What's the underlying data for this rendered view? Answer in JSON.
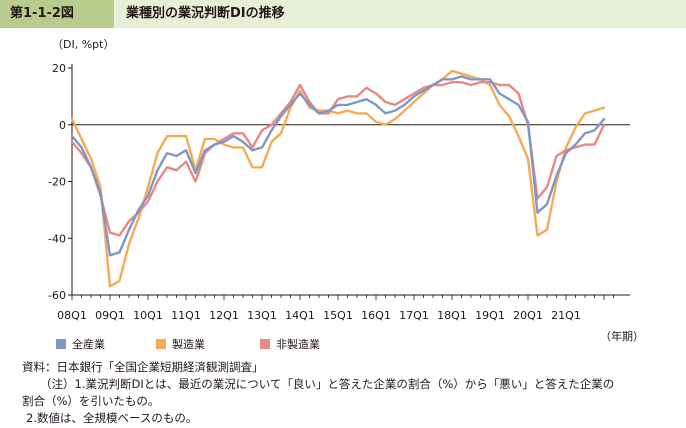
{
  "figure": {
    "number": "第1-1-2図",
    "title": "業種別の業況判断DIの推移"
  },
  "chart_data": {
    "type": "line",
    "unit_label": "（DI, %pt）",
    "x_unit_label": "（年期）",
    "ylim": [
      -60,
      20
    ],
    "yticks": [
      20,
      0,
      -20,
      -40,
      -60
    ],
    "zero_line": true,
    "grid": false,
    "legend_position": "bottom-left",
    "x_tick_labels": [
      "08Q1",
      "09Q1",
      "10Q1",
      "11Q1",
      "12Q1",
      "13Q1",
      "14Q1",
      "15Q1",
      "16Q1",
      "17Q1",
      "18Q1",
      "19Q1",
      "20Q1",
      "21Q1"
    ],
    "x_start": "2008Q1",
    "series": [
      {
        "name": "全産業",
        "color": "#7f97c4",
        "values": [
          -4,
          -8,
          -15,
          -24,
          -46,
          -45,
          -37,
          -30,
          -25,
          -16,
          -10,
          -11,
          -9,
          -17,
          -9,
          -7,
          -6,
          -4,
          -6,
          -9,
          -8,
          -2,
          3,
          7,
          11,
          7,
          4,
          5,
          7,
          7,
          8,
          9,
          7,
          4,
          5,
          7,
          10,
          12,
          14,
          16,
          16,
          17,
          16,
          16,
          16,
          11,
          9,
          7,
          1,
          -31,
          -28,
          -18,
          -10,
          -7,
          -3,
          -2,
          2
        ]
      },
      {
        "name": "製造業",
        "color": "#f5ab54",
        "values": [
          2,
          -5,
          -12,
          -22,
          -57,
          -55,
          -42,
          -33,
          -22,
          -10,
          -4,
          -4,
          -4,
          -16,
          -5,
          -5,
          -7,
          -8,
          -8,
          -15,
          -15,
          -6,
          -3,
          6,
          12,
          6,
          5,
          5,
          4,
          5,
          4,
          4,
          1,
          0,
          2,
          5,
          8,
          11,
          14,
          16,
          19,
          18,
          17,
          16,
          14,
          7,
          3,
          -4,
          -12,
          -39,
          -37,
          -20,
          -8,
          -1,
          4,
          5,
          6
        ]
      },
      {
        "name": "非製造業",
        "color": "#e98784",
        "values": [
          -6,
          -10,
          -15,
          -25,
          -38,
          -39,
          -34,
          -31,
          -27,
          -20,
          -15,
          -16,
          -13,
          -20,
          -10,
          -7,
          -5,
          -3,
          -3,
          -8,
          -2,
          0,
          4,
          8,
          14,
          8,
          4,
          4,
          9,
          10,
          10,
          13,
          11,
          8,
          7,
          9,
          11,
          13,
          14,
          14,
          15,
          15,
          14,
          15,
          15,
          14,
          14,
          11,
          0,
          -26,
          -22,
          -11,
          -9,
          -8,
          -7,
          -7,
          0
        ]
      }
    ]
  },
  "notes": [
    "資料：日本銀行「全国企業短期経済観測調査」",
    "（注）1.業況判断DIとは、最近の業況について「良い」と答えた企業の割合（%）から「悪い」と答えた企業の",
    "割合（%）を引いたもの。",
    "2.数値は、全規模ベースのもの。"
  ]
}
